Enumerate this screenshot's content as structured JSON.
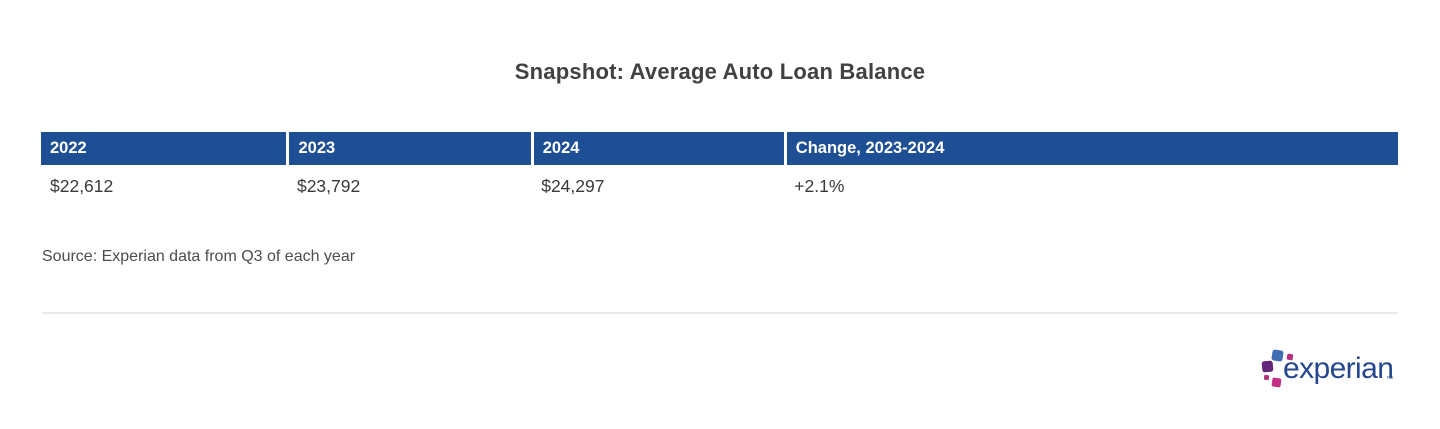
{
  "page": {
    "title": "Snapshot: Average Auto Loan Balance",
    "source_note": "Source: Experian data from Q3 of each year"
  },
  "table": {
    "columns": [
      "2022",
      "2023",
      "2024",
      "Change, 2023-2024"
    ],
    "rows": [
      [
        "$22,612",
        "$23,792",
        "$24,297",
        "+2.1%"
      ]
    ]
  },
  "logo": {
    "text": "experian",
    "trademark": "™"
  },
  "colors": {
    "table_header_bg": "#1e4e94",
    "table_header_text": "#ffffff",
    "table_cell_text": "#3a3a3a",
    "title_text": "#414042",
    "source_text": "#4d4d4d",
    "divider": "#e9e9e9",
    "logo_wordmark": "#26478d",
    "logo_square_blue": "#406eb3",
    "logo_square_purple": "#632678",
    "logo_square_magenta": "#ba2f7d",
    "logo_square_pink": "#c42f85"
  },
  "chart_data": {
    "type": "table",
    "title": "Snapshot: Average Auto Loan Balance",
    "columns": [
      "2022",
      "2023",
      "2024",
      "Change, 2023-2024"
    ],
    "rows": [
      [
        "$22,612",
        "$23,792",
        "$24,297",
        "+2.1%"
      ]
    ],
    "values_numeric": {
      "2022": 22612,
      "2023": 23792,
      "2024": 24297,
      "change_2023_2024_percent": 2.1
    },
    "source": "Source: Experian data from Q3 of each year"
  }
}
